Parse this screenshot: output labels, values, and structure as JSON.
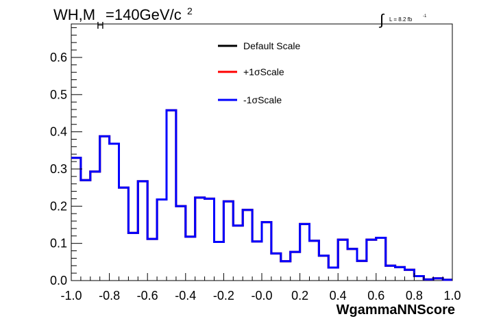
{
  "chart_data": {
    "type": "line",
    "title": {
      "main": "WH,M",
      "subscript": "H",
      "rest": "=140GeV/c",
      "superscript": "2"
    },
    "luminosity": {
      "integral_symbol": "∫",
      "text": "L = 8.2 fb",
      "superscript": "-1"
    },
    "xlabel": "WgammaNNScore",
    "ylabel": "",
    "xlim": [
      -1.0,
      1.0
    ],
    "ylim": [
      0.0,
      0.69
    ],
    "x_ticks": [
      "-1.0",
      "-0.8",
      "-0.6",
      "-0.4",
      "-0.2",
      "-0.0",
      "0.2",
      "0.4",
      "0.6",
      "0.8",
      "1.0"
    ],
    "y_ticks": [
      "0.0",
      "0.1",
      "0.2",
      "0.3",
      "0.4",
      "0.5",
      "0.6"
    ],
    "legend_placement": "top-center",
    "grid": false,
    "bin_edges": [
      -1.0,
      -0.95,
      -0.9,
      -0.85,
      -0.8,
      -0.75,
      -0.7,
      -0.65,
      -0.6,
      -0.55,
      -0.5,
      -0.45,
      -0.4,
      -0.35,
      -0.3,
      -0.25,
      -0.2,
      -0.15,
      -0.1,
      -0.05,
      0.0,
      0.05,
      0.1,
      0.15,
      0.2,
      0.25,
      0.3,
      0.35,
      0.4,
      0.45,
      0.5,
      0.55,
      0.6,
      0.65,
      0.7,
      0.75,
      0.8,
      0.85,
      0.9,
      0.95,
      1.0
    ],
    "series": [
      {
        "name": "Default Scale",
        "color": "#000000",
        "values": [
          0.33,
          0.27,
          0.293,
          0.388,
          0.368,
          0.25,
          0.128,
          0.267,
          0.112,
          0.218,
          0.458,
          0.2,
          0.118,
          0.223,
          0.22,
          0.104,
          0.213,
          0.148,
          0.19,
          0.105,
          0.157,
          0.073,
          0.052,
          0.077,
          0.152,
          0.107,
          0.067,
          0.035,
          0.11,
          0.085,
          0.053,
          0.11,
          0.115,
          0.04,
          0.036,
          0.029,
          0.012,
          0.003,
          0.006,
          0.002
        ]
      },
      {
        "name": "+1σScale",
        "color": "#ff0000",
        "values": [
          0.33,
          0.27,
          0.293,
          0.388,
          0.368,
          0.25,
          0.128,
          0.267,
          0.112,
          0.218,
          0.458,
          0.2,
          0.118,
          0.223,
          0.22,
          0.104,
          0.213,
          0.148,
          0.19,
          0.105,
          0.157,
          0.073,
          0.052,
          0.077,
          0.152,
          0.107,
          0.067,
          0.035,
          0.11,
          0.085,
          0.053,
          0.11,
          0.115,
          0.04,
          0.036,
          0.029,
          0.012,
          0.003,
          0.006,
          0.002
        ]
      },
      {
        "name": "-1σScale",
        "color": "#0000ff",
        "values": [
          0.33,
          0.27,
          0.293,
          0.388,
          0.368,
          0.25,
          0.128,
          0.267,
          0.112,
          0.218,
          0.458,
          0.2,
          0.118,
          0.223,
          0.22,
          0.104,
          0.213,
          0.148,
          0.19,
          0.105,
          0.157,
          0.073,
          0.052,
          0.077,
          0.152,
          0.107,
          0.067,
          0.035,
          0.11,
          0.085,
          0.053,
          0.11,
          0.115,
          0.04,
          0.036,
          0.029,
          0.012,
          0.003,
          0.006,
          0.002
        ]
      }
    ]
  }
}
